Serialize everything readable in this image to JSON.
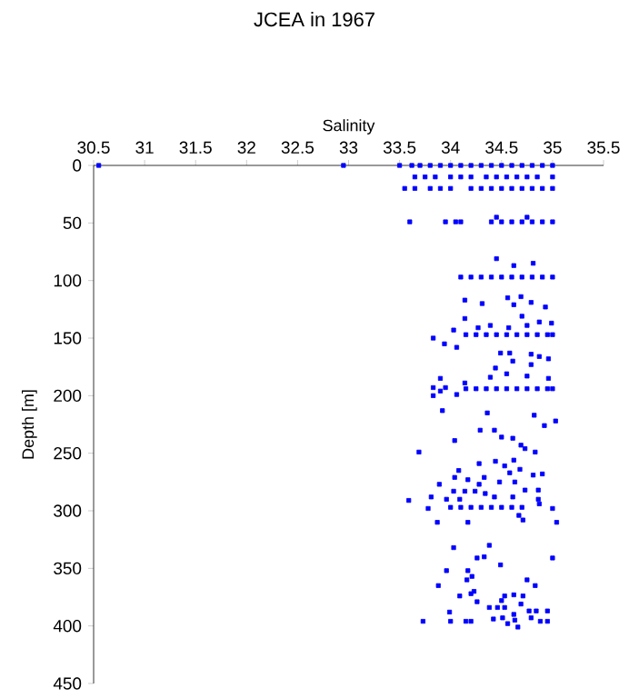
{
  "chart_data": {
    "type": "scatter",
    "title": "JCEA in 1967",
    "xlabel": "Salinity",
    "ylabel": "Depth [m]",
    "xlim": [
      30.5,
      35.5
    ],
    "xticks": [
      30.5,
      31,
      31.5,
      32,
      32.5,
      33,
      33.5,
      34,
      34.5,
      35,
      35.5
    ],
    "ylim": [
      450,
      0
    ],
    "yticks": [
      0,
      50,
      100,
      150,
      200,
      250,
      300,
      350,
      400,
      450
    ],
    "marker": "square",
    "grid": false,
    "series": [
      {
        "color": "#0000ff",
        "x": [
          30.55,
          32.95,
          33.5,
          33.62,
          33.7,
          33.8,
          33.9,
          34.0,
          34.1,
          34.2,
          34.3,
          34.4,
          34.5,
          34.6,
          34.7,
          34.8,
          34.9,
          35.0,
          33.65,
          33.75,
          33.85,
          34.0,
          34.1,
          34.2,
          34.35,
          34.45,
          34.55,
          34.65,
          34.75,
          34.85,
          35.0,
          33.55,
          33.65,
          33.8,
          33.9,
          34.0,
          34.2,
          34.3,
          34.4,
          34.5,
          34.6,
          34.7,
          34.8,
          34.9,
          35.0,
          33.6,
          33.95,
          34.05,
          34.1,
          34.4,
          34.5,
          34.6,
          34.7,
          34.8,
          34.9,
          35.0,
          34.45,
          34.75,
          34.1,
          34.2,
          34.3,
          34.4,
          34.5,
          34.6,
          34.7,
          34.8,
          34.9,
          35.0,
          34.45,
          34.62,
          34.81,
          34.14,
          34.31,
          34.14,
          34.56,
          34.69,
          34.62,
          34.79,
          34.93,
          34.03,
          33.83,
          33.94,
          34.06,
          34.27,
          34.39,
          34.57,
          34.75,
          34.99,
          34.7,
          34.87,
          34.15,
          34.25,
          34.35,
          34.45,
          34.55,
          34.65,
          34.75,
          34.85,
          34.95,
          35.0,
          34.49,
          34.58,
          34.79,
          34.87,
          34.96,
          34.61,
          34.44,
          34.79,
          34.55,
          34.75,
          34.06,
          33.83,
          33.83,
          33.9,
          33.95,
          34.15,
          34.25,
          34.35,
          34.45,
          34.55,
          34.65,
          34.75,
          34.85,
          34.95,
          35.0,
          33.9,
          34.39,
          34.14,
          34.96,
          33.92,
          34.36,
          34.82,
          34.92,
          35.03,
          34.29,
          34.43,
          34.5,
          34.61,
          34.69,
          34.73,
          34.83,
          34.04,
          33.69,
          34.28,
          34.44,
          34.53,
          34.62,
          34.68,
          34.58,
          34.08,
          34.04,
          34.17,
          34.33,
          33.89,
          34.28,
          34.48,
          34.63,
          34.81,
          34.9,
          34.03,
          34.14,
          34.24,
          34.34,
          34.73,
          34.86,
          33.81,
          33.96,
          33.59,
          34.09,
          34.43,
          34.61,
          34.86,
          33.78,
          34.0,
          34.1,
          34.2,
          34.3,
          34.4,
          34.5,
          34.6,
          34.7,
          35.0,
          34.87,
          33.87,
          34.17,
          34.67,
          34.71,
          35.04,
          34.03,
          34.38,
          34.26,
          34.33,
          35.0,
          34.49,
          33.96,
          34.17,
          34.21,
          34.16,
          34.75,
          34.83,
          33.88,
          34.23,
          34.2,
          34.09,
          34.53,
          34.62,
          34.71,
          34.26,
          34.5,
          34.69,
          33.99,
          34.38,
          34.46,
          34.53,
          34.77,
          34.84,
          34.95,
          34.62,
          34.79,
          33.73,
          34.0,
          34.15,
          34.2,
          34.42,
          34.51,
          34.56,
          34.63,
          34.88,
          34.95,
          34.66
        ],
        "values": [
          0,
          0,
          0,
          0,
          0,
          0,
          0,
          0,
          0,
          0,
          0,
          0,
          0,
          0,
          0,
          0,
          0,
          0,
          10,
          10,
          10,
          10,
          10,
          10,
          10,
          10,
          10,
          10,
          10,
          10,
          10,
          20,
          20,
          20,
          20,
          20,
          20,
          20,
          20,
          20,
          20,
          20,
          20,
          20,
          20,
          49,
          49,
          49,
          49,
          49,
          49,
          49,
          49,
          49,
          49,
          49,
          45,
          45,
          97,
          97,
          97,
          97,
          97,
          97,
          97,
          97,
          97,
          97,
          81,
          87,
          85,
          117,
          120,
          133,
          115,
          114,
          121,
          119,
          123,
          143,
          150,
          155,
          158,
          141,
          139,
          141,
          139,
          137,
          131,
          136,
          147,
          147,
          147,
          147,
          147,
          147,
          147,
          147,
          147,
          147,
          163,
          163,
          164,
          166,
          168,
          170,
          176,
          173,
          181,
          183,
          199,
          193,
          200,
          196,
          193,
          194,
          194,
          194,
          194,
          194,
          194,
          194,
          194,
          194,
          194,
          185,
          184,
          189,
          185,
          213,
          215,
          217,
          226,
          222,
          230,
          230,
          236,
          237,
          243,
          246,
          249,
          239,
          249,
          259,
          257,
          261,
          256,
          264,
          267,
          265,
          271,
          273,
          271,
          277,
          277,
          275,
          275,
          269,
          268,
          283,
          283,
          283,
          285,
          282,
          282,
          288,
          290,
          291,
          290,
          288,
          288,
          290,
          298,
          297,
          297,
          297,
          297,
          297,
          297,
          297,
          297,
          298,
          294,
          310,
          310,
          304,
          308,
          310,
          332,
          330,
          341,
          340,
          341,
          347,
          352,
          352,
          357,
          360,
          360,
          365,
          365,
          370,
          372,
          374,
          374,
          373,
          374,
          379,
          378,
          381,
          388,
          384,
          384,
          384,
          387,
          387,
          387,
          390,
          393,
          396,
          396,
          396,
          396,
          394,
          393,
          398,
          395,
          396,
          396,
          401
        ]
      }
    ]
  }
}
